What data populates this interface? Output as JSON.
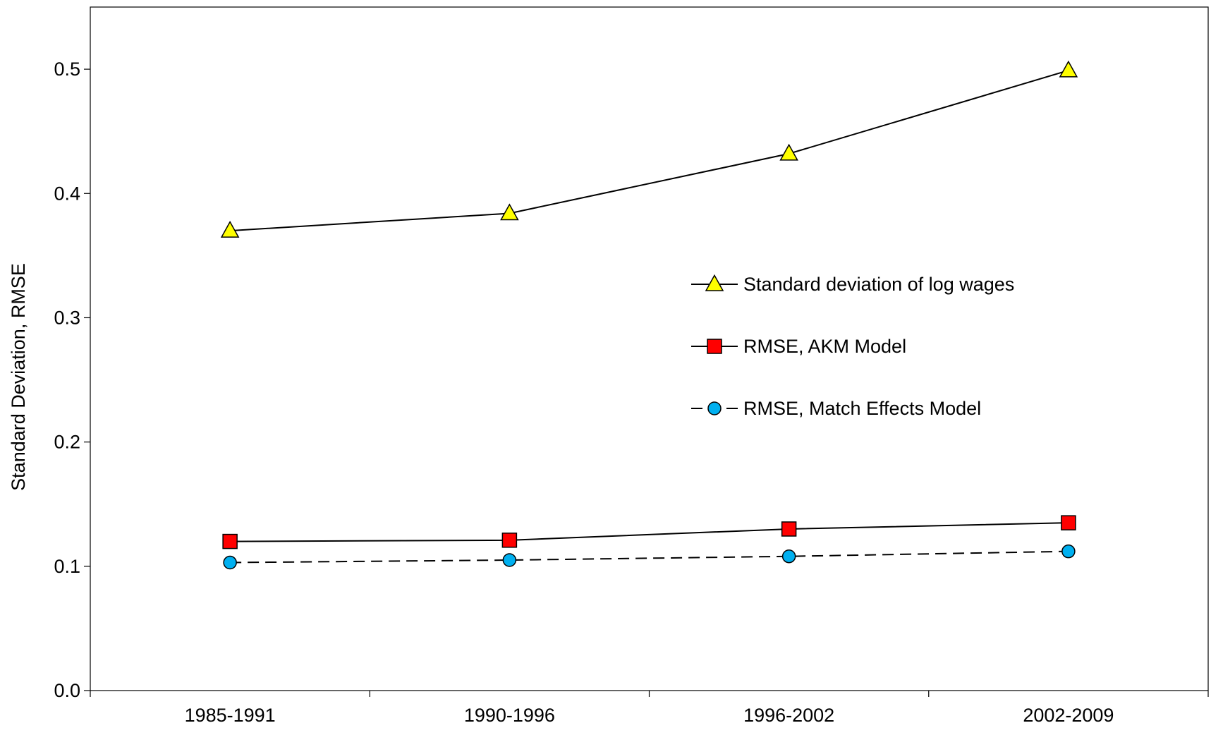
{
  "chart_data": {
    "type": "line",
    "title": "",
    "xlabel": "",
    "ylabel": "Standard Deviation, RMSE",
    "categories": [
      "1985-1991",
      "1990-1996",
      "1996-2002",
      "2002-2009"
    ],
    "ylim": [
      0.0,
      0.55
    ],
    "yticks": [
      0.0,
      0.1,
      0.2,
      0.3,
      0.4,
      0.5
    ],
    "ytick_labels": [
      "0.0",
      "0.1",
      "0.2",
      "0.3",
      "0.4",
      "0.5"
    ],
    "grid": false,
    "legend_position": "center-right",
    "series": [
      {
        "name": "Standard deviation of log wages",
        "values": [
          0.37,
          0.384,
          0.432,
          0.499
        ],
        "marker": "triangle",
        "marker_color": "#ffff00",
        "line_color": "#000000",
        "line_style": "solid"
      },
      {
        "name": "RMSE, AKM Model",
        "values": [
          0.12,
          0.121,
          0.13,
          0.135
        ],
        "marker": "square",
        "marker_color": "#ff0000",
        "line_color": "#000000",
        "line_style": "solid"
      },
      {
        "name": "RMSE, Match Effects Model",
        "values": [
          0.103,
          0.105,
          0.108,
          0.112
        ],
        "marker": "circle",
        "marker_color": "#00b0f0",
        "line_color": "#000000",
        "line_style": "dashed"
      }
    ]
  }
}
